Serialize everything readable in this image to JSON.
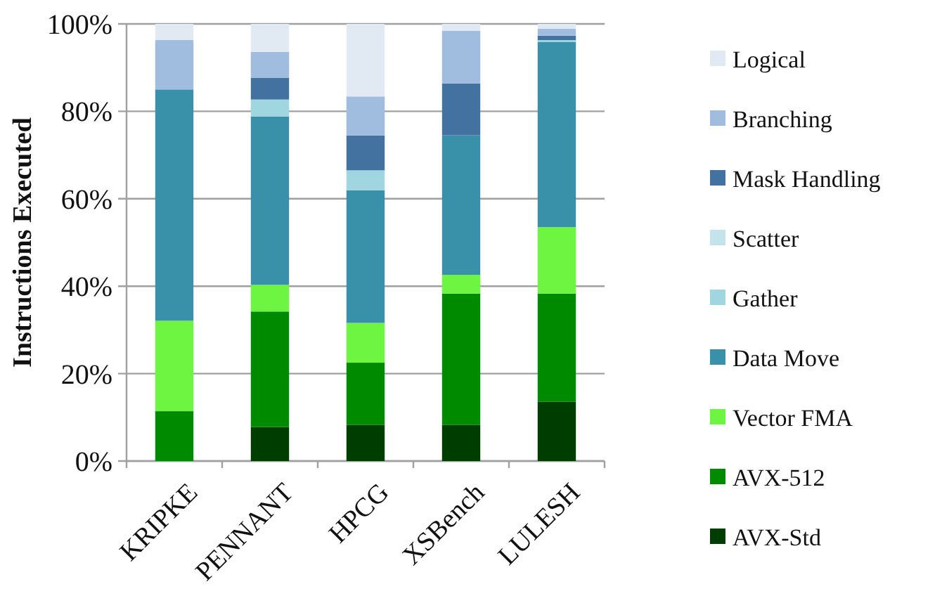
{
  "chart_data": {
    "type": "bar",
    "stacked": true,
    "ylabel": "Instructions Executed",
    "categories": [
      "KRIPKE",
      "PENNANT",
      "HPCG",
      "XSBench",
      "LULESH"
    ],
    "series": [
      {
        "name": "AVX-Std",
        "color": "#003d00",
        "values": [
          0,
          7.8,
          8.3,
          8.3,
          13.6
        ]
      },
      {
        "name": "AVX-512",
        "color": "#008a00",
        "values": [
          11.4,
          26.4,
          14.2,
          30.0,
          24.7
        ]
      },
      {
        "name": "Vector FMA",
        "color": "#6ef542",
        "values": [
          20.7,
          6.1,
          9.1,
          4.3,
          15.2
        ]
      },
      {
        "name": "Data Move",
        "color": "#3891a8",
        "values": [
          52.9,
          38.5,
          30.3,
          31.9,
          42.4
        ]
      },
      {
        "name": "Gather",
        "color": "#9fd6e0",
        "values": [
          0,
          3.9,
          4.6,
          0,
          0.4
        ]
      },
      {
        "name": "Scatter",
        "color": "#c4e4ec",
        "values": [
          0,
          0,
          0,
          0,
          0
        ]
      },
      {
        "name": "Mask Handling",
        "color": "#4472a0",
        "values": [
          0,
          5.0,
          8.0,
          11.9,
          1.0
        ]
      },
      {
        "name": "Branching",
        "color": "#a0bde0",
        "values": [
          11.3,
          5.9,
          8.9,
          12.0,
          1.6
        ]
      },
      {
        "name": "Logical",
        "color": "#e1e9f2",
        "values": [
          3.7,
          6.4,
          16.6,
          1.6,
          1.1
        ]
      }
    ],
    "ylim": [
      0,
      100
    ],
    "yticks": [
      {
        "value": 0,
        "label": "0%"
      },
      {
        "value": 20,
        "label": "20%"
      },
      {
        "value": 40,
        "label": "40%"
      },
      {
        "value": 60,
        "label": "60%"
      },
      {
        "value": 80,
        "label": "80%"
      },
      {
        "value": 100,
        "label": "100%"
      }
    ],
    "grid": "y",
    "legend": "right"
  }
}
